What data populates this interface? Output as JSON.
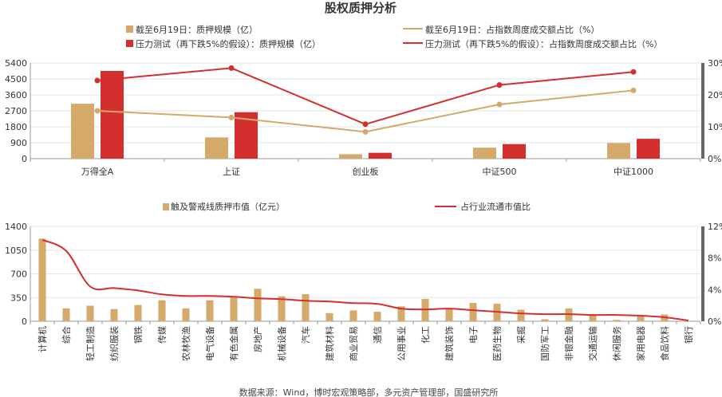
{
  "title": "股权质押分析",
  "source": "数据来源：Wind，博时宏观策略部，多元资产管理部，国盛研究所",
  "colors": {
    "bar_light": "#D4A96A",
    "bar_dark": "#D32F2F",
    "line_light": "#D4A96A",
    "line_dark": "#D32F2F",
    "axis": "#999999",
    "grid": "#E6E6E6",
    "right_axis": "#666666"
  },
  "chart_data": [
    {
      "type": "bar",
      "categories": [
        "万得全A",
        "上证",
        "创业板",
        "中证500",
        "中证1000"
      ],
      "series": [
        {
          "name": "截至6月19日：质押规模（亿）",
          "kind": "bar",
          "axis": "left",
          "color": "#D4A96A",
          "values": [
            3100,
            1200,
            250,
            620,
            880
          ]
        },
        {
          "name": "压力测试（再下跌5%的假设）：质押规模（亿）",
          "kind": "bar",
          "axis": "left",
          "color": "#D32F2F",
          "values": [
            4950,
            2620,
            330,
            820,
            1120
          ]
        },
        {
          "name": "截至6月19日：占指数周度成交额占比（%）",
          "kind": "line",
          "axis": "right",
          "color": "#D4A96A",
          "values": [
            15.0,
            12.9,
            8.4,
            17.0,
            21.4
          ]
        },
        {
          "name": "压力测试（再下跌5%的假设）：占指数周度成交额占比（%）",
          "kind": "line",
          "axis": "right",
          "color": "#D32F2F",
          "values": [
            24.5,
            28.4,
            10.8,
            23.1,
            27.2
          ]
        }
      ],
      "left_axis": {
        "ticks": [
          "0",
          "900",
          "1800",
          "2700",
          "3600",
          "4500",
          "5400"
        ],
        "min": 0,
        "max": 5400
      },
      "right_axis": {
        "ticks": [
          "0%",
          "10%",
          "20%",
          "30%"
        ],
        "min": 0,
        "max": 30
      },
      "legend_position": "top"
    },
    {
      "type": "bar",
      "categories": [
        "计算机",
        "综合",
        "轻工制造",
        "纺织服装",
        "钢铁",
        "传媒",
        "农林牧渔",
        "电气设备",
        "有色金属",
        "房地产",
        "机械设备",
        "汽车",
        "建筑材料",
        "商业贸易",
        "通信",
        "公用事业",
        "化工",
        "建筑装饰",
        "电子",
        "医药生物",
        "采掘",
        "国防军工",
        "非银金融",
        "交通运输",
        "休闲服务",
        "家用电器",
        "食品饮料",
        "银行"
      ],
      "series": [
        {
          "name": "触及警戒线质押市值（亿元）",
          "kind": "bar",
          "axis": "left",
          "color": "#D4A96A",
          "values": [
            1220,
            190,
            230,
            180,
            240,
            310,
            190,
            310,
            350,
            480,
            370,
            400,
            120,
            160,
            140,
            220,
            330,
            180,
            270,
            260,
            170,
            30,
            190,
            100,
            20,
            70,
            100,
            5
          ]
        },
        {
          "name": "占行业流通市值比",
          "kind": "line",
          "axis": "right",
          "color": "#D32F2F",
          "values": [
            10.3,
            8.9,
            4.4,
            4.2,
            3.9,
            3.4,
            3.2,
            3.2,
            3.1,
            2.9,
            2.8,
            2.6,
            2.5,
            2.3,
            2.2,
            1.6,
            1.5,
            1.6,
            1.4,
            1.2,
            1.0,
            0.9,
            0.9,
            0.8,
            0.8,
            0.7,
            0.5,
            0.1
          ]
        }
      ],
      "left_axis": {
        "ticks": [
          "0",
          "350",
          "700",
          "1050",
          "1400"
        ],
        "min": 0,
        "max": 1400
      },
      "right_axis": {
        "ticks": [
          "0%",
          "4%",
          "8%",
          "12%"
        ],
        "min": 0,
        "max": 12
      },
      "legend_position": "top"
    }
  ]
}
